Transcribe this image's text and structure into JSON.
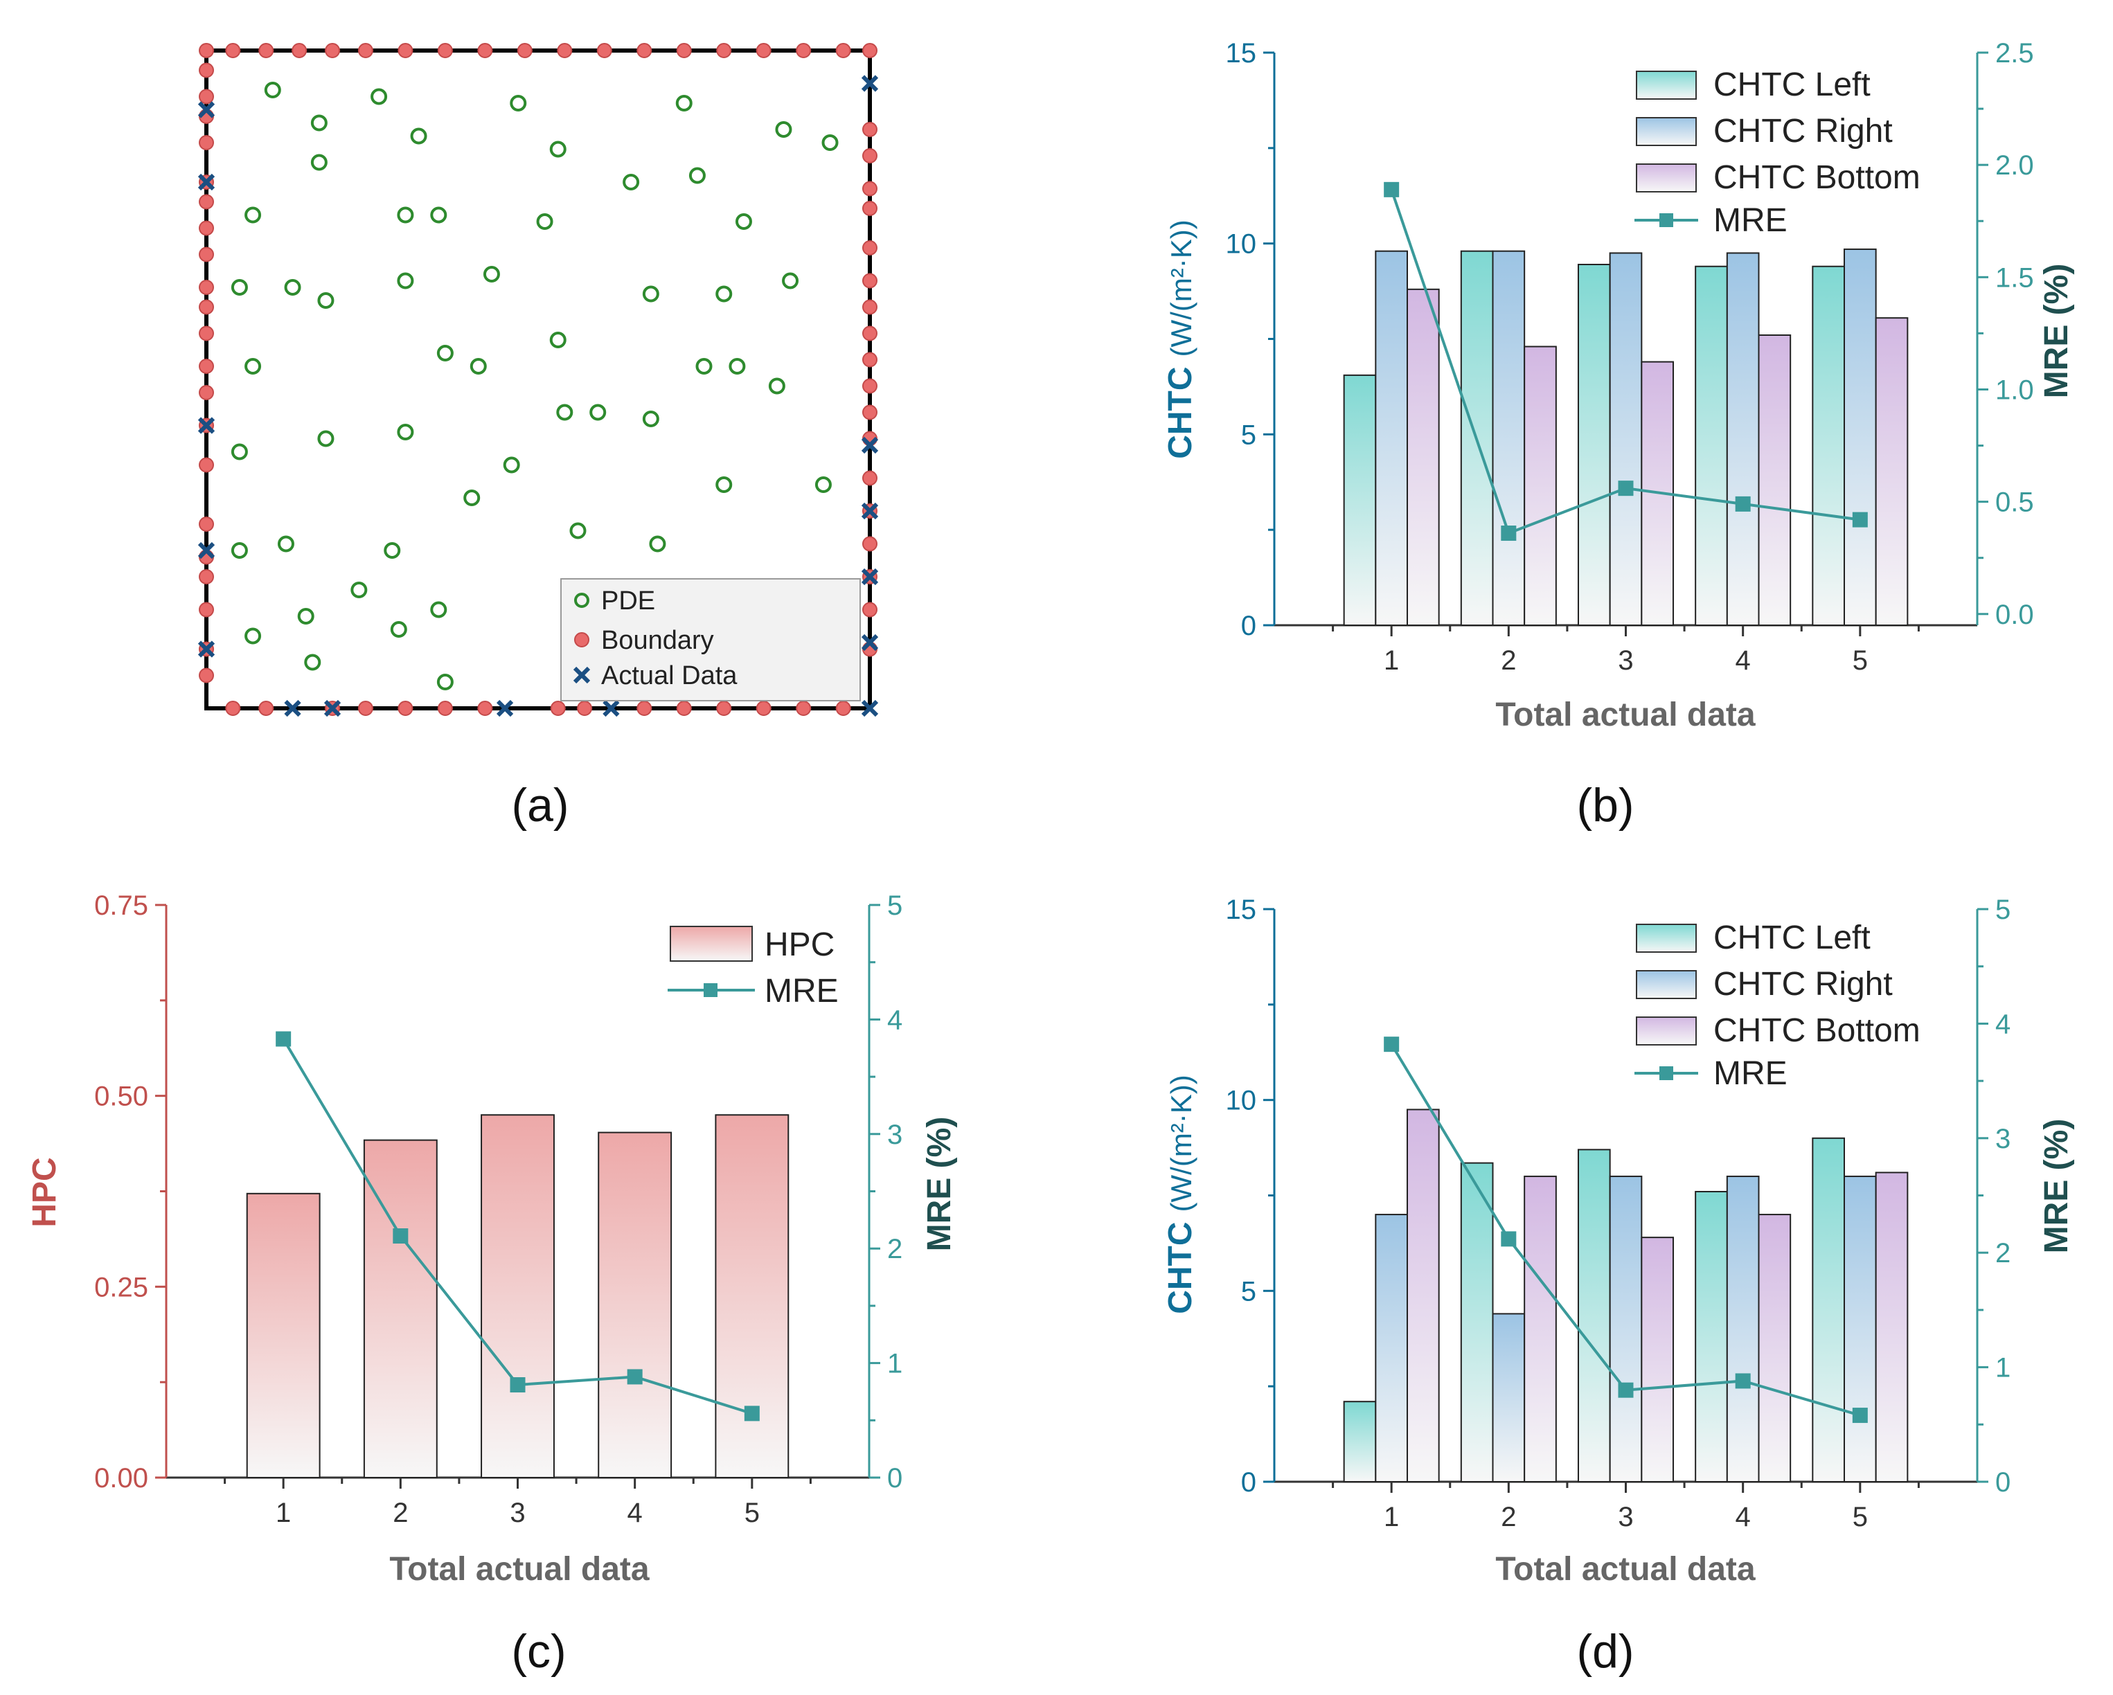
{
  "colors": {
    "teal": "#3a9a9a",
    "teal_dark": "#1f4f4f",
    "blue_axis": "#0f6f98",
    "hpc_red": "#c0504d",
    "pde_green": "#2e8b2e",
    "boundary_red": "#e86a6a",
    "actual_blue": "#1b4f82"
  },
  "labels": {
    "a": "(a)",
    "b": "(b)",
    "c": "(c)",
    "d": "(d)"
  },
  "chart_data": [
    {
      "panel": "a",
      "type": "scatter",
      "title": "",
      "xlim": [
        0,
        1
      ],
      "ylim": [
        0,
        1
      ],
      "legend_position": "bottom-right",
      "legend": [
        "PDE",
        "Boundary",
        "Actual Data"
      ],
      "series": [
        {
          "name": "PDE",
          "points": [
            [
              0.1,
              0.94
            ],
            [
              0.17,
              0.89
            ],
            [
              0.26,
              0.93
            ],
            [
              0.32,
              0.87
            ],
            [
              0.47,
              0.92
            ],
            [
              0.72,
              0.92
            ],
            [
              0.87,
              0.88
            ],
            [
              0.94,
              0.86
            ],
            [
              0.17,
              0.83
            ],
            [
              0.53,
              0.85
            ],
            [
              0.64,
              0.8
            ],
            [
              0.74,
              0.81
            ],
            [
              0.07,
              0.75
            ],
            [
              0.3,
              0.75
            ],
            [
              0.35,
              0.75
            ],
            [
              0.51,
              0.74
            ],
            [
              0.81,
              0.74
            ],
            [
              0.05,
              0.64
            ],
            [
              0.13,
              0.64
            ],
            [
              0.18,
              0.62
            ],
            [
              0.3,
              0.65
            ],
            [
              0.43,
              0.66
            ],
            [
              0.67,
              0.63
            ],
            [
              0.78,
              0.63
            ],
            [
              0.88,
              0.65
            ],
            [
              0.07,
              0.52
            ],
            [
              0.36,
              0.54
            ],
            [
              0.41,
              0.52
            ],
            [
              0.53,
              0.56
            ],
            [
              0.75,
              0.52
            ],
            [
              0.8,
              0.52
            ],
            [
              0.86,
              0.49
            ],
            [
              0.54,
              0.45
            ],
            [
              0.59,
              0.45
            ],
            [
              0.67,
              0.44
            ],
            [
              0.05,
              0.39
            ],
            [
              0.18,
              0.41
            ],
            [
              0.3,
              0.42
            ],
            [
              0.46,
              0.37
            ],
            [
              0.4,
              0.32
            ],
            [
              0.78,
              0.34
            ],
            [
              0.93,
              0.34
            ],
            [
              0.56,
              0.27
            ],
            [
              0.05,
              0.24
            ],
            [
              0.12,
              0.25
            ],
            [
              0.28,
              0.24
            ],
            [
              0.68,
              0.25
            ],
            [
              0.23,
              0.18
            ],
            [
              0.35,
              0.15
            ],
            [
              0.15,
              0.14
            ],
            [
              0.29,
              0.12
            ],
            [
              0.07,
              0.11
            ],
            [
              0.16,
              0.07
            ],
            [
              0.36,
              0.04
            ]
          ]
        },
        {
          "name": "Boundary",
          "points": [
            [
              0.0,
              0.28
            ],
            [
              0.0,
              0.23
            ],
            [
              0.0,
              0.2
            ],
            [
              0.0,
              0.15
            ],
            [
              0.0,
              0.09
            ],
            [
              0.0,
              0.05
            ],
            [
              0.0,
              0.37
            ],
            [
              0.0,
              0.43
            ],
            [
              0.0,
              0.48
            ],
            [
              0.0,
              0.52
            ],
            [
              0.0,
              0.57
            ],
            [
              0.0,
              0.61
            ],
            [
              0.0,
              0.64
            ],
            [
              0.0,
              0.69
            ],
            [
              0.0,
              0.73
            ],
            [
              0.0,
              0.77
            ],
            [
              0.0,
              0.8
            ],
            [
              0.0,
              0.86
            ],
            [
              0.0,
              0.9
            ],
            [
              0.0,
              0.93
            ],
            [
              0.0,
              0.97
            ],
            [
              0.0,
              1.0
            ],
            [
              0.04,
              1.0
            ],
            [
              0.09,
              1.0
            ],
            [
              0.14,
              1.0
            ],
            [
              0.19,
              1.0
            ],
            [
              0.24,
              1.0
            ],
            [
              0.3,
              1.0
            ],
            [
              0.36,
              1.0
            ],
            [
              0.42,
              1.0
            ],
            [
              0.48,
              1.0
            ],
            [
              0.54,
              1.0
            ],
            [
              0.6,
              1.0
            ],
            [
              0.66,
              1.0
            ],
            [
              0.72,
              1.0
            ],
            [
              0.78,
              1.0
            ],
            [
              0.84,
              1.0
            ],
            [
              0.9,
              1.0
            ],
            [
              0.96,
              1.0
            ],
            [
              1.0,
              1.0
            ],
            [
              1.0,
              0.88
            ],
            [
              1.0,
              0.84
            ],
            [
              1.0,
              0.79
            ],
            [
              1.0,
              0.76
            ],
            [
              1.0,
              0.7
            ],
            [
              1.0,
              0.65
            ],
            [
              1.0,
              0.61
            ],
            [
              1.0,
              0.57
            ],
            [
              1.0,
              0.53
            ],
            [
              1.0,
              0.49
            ],
            [
              1.0,
              0.45
            ],
            [
              1.0,
              0.41
            ],
            [
              1.0,
              0.35
            ],
            [
              1.0,
              0.3
            ],
            [
              1.0,
              0.25
            ],
            [
              1.0,
              0.2
            ],
            [
              1.0,
              0.15
            ],
            [
              1.0,
              0.09
            ],
            [
              0.04,
              0.0
            ],
            [
              0.09,
              0.0
            ],
            [
              0.19,
              0.0
            ],
            [
              0.24,
              0.0
            ],
            [
              0.3,
              0.0
            ],
            [
              0.36,
              0.0
            ],
            [
              0.42,
              0.0
            ],
            [
              0.53,
              0.0
            ],
            [
              0.57,
              0.0
            ],
            [
              0.66,
              0.0
            ],
            [
              0.72,
              0.0
            ],
            [
              0.78,
              0.0
            ],
            [
              0.84,
              0.0
            ],
            [
              0.9,
              0.0
            ],
            [
              0.96,
              0.0
            ]
          ]
        },
        {
          "name": "Actual Data",
          "points": [
            [
              0.0,
              0.91
            ],
            [
              0.0,
              0.8
            ],
            [
              0.0,
              0.43
            ],
            [
              0.0,
              0.24
            ],
            [
              0.0,
              0.09
            ],
            [
              1.0,
              0.95
            ],
            [
              1.0,
              0.4
            ],
            [
              1.0,
              0.3
            ],
            [
              1.0,
              0.2
            ],
            [
              1.0,
              0.1
            ],
            [
              1.0,
              0.0
            ],
            [
              0.13,
              0.0
            ],
            [
              0.19,
              0.0
            ],
            [
              0.45,
              0.0
            ],
            [
              0.61,
              0.0
            ]
          ]
        }
      ]
    },
    {
      "panel": "b",
      "type": "bar",
      "xlabel": "Total actual data",
      "ylabel": "CHTC",
      "ylabel_unit": "(W/(m²·K))",
      "y2label": "MRE (%)",
      "categories": [
        "1",
        "2",
        "3",
        "4",
        "5"
      ],
      "xlim": [
        0,
        6
      ],
      "ylim": [
        0,
        15
      ],
      "yticks": [
        "0",
        "5",
        "10",
        "15"
      ],
      "y2lim": [
        -0.05,
        2.5
      ],
      "y2ticks": [
        "0.0",
        "0.5",
        "1.0",
        "1.5",
        "2.0",
        "2.5"
      ],
      "legend_position": "top-right",
      "series": [
        {
          "name": "CHTC Left",
          "values": [
            6.55,
            9.8,
            9.45,
            9.4,
            9.4
          ]
        },
        {
          "name": "CHTC Right",
          "values": [
            9.8,
            9.8,
            9.75,
            9.75,
            9.85
          ]
        },
        {
          "name": "CHTC Bottom",
          "values": [
            8.8,
            7.3,
            6.9,
            7.6,
            8.05
          ]
        }
      ],
      "line": {
        "name": "MRE",
        "values": [
          1.89,
          0.36,
          0.56,
          0.49,
          0.42
        ]
      }
    },
    {
      "panel": "c",
      "type": "bar",
      "xlabel": "Total actual data",
      "ylabel": "HPC",
      "y2label": "MRE (%)",
      "categories": [
        "1",
        "2",
        "3",
        "4",
        "5"
      ],
      "xlim": [
        0,
        6
      ],
      "ylim": [
        0,
        0.75
      ],
      "yticks": [
        "0.00",
        "0.25",
        "0.50",
        "0.75"
      ],
      "y2lim": [
        0,
        5
      ],
      "y2ticks": [
        "0",
        "1",
        "2",
        "3",
        "4",
        "5"
      ],
      "legend_position": "top-right",
      "series": [
        {
          "name": "HPC",
          "values": [
            0.372,
            0.442,
            0.475,
            0.452,
            0.475
          ]
        }
      ],
      "line": {
        "name": "MRE",
        "values": [
          3.83,
          2.11,
          0.81,
          0.88,
          0.56
        ]
      }
    },
    {
      "panel": "d",
      "type": "bar",
      "xlabel": "Total actual data",
      "ylabel": "CHTC",
      "ylabel_unit": "(W/(m²·K))",
      "y2label": "MRE (%)",
      "categories": [
        "1",
        "2",
        "3",
        "4",
        "5"
      ],
      "xlim": [
        0,
        6
      ],
      "ylim": [
        0,
        15
      ],
      "yticks": [
        "0",
        "5",
        "10",
        "15"
      ],
      "y2lim": [
        0,
        5
      ],
      "y2ticks": [
        "0",
        "1",
        "2",
        "3",
        "4",
        "5"
      ],
      "legend_position": "top-right",
      "series": [
        {
          "name": "CHTC Left",
          "values": [
            2.1,
            8.35,
            8.7,
            7.6,
            9.0
          ]
        },
        {
          "name": "CHTC Right",
          "values": [
            7.0,
            4.4,
            8.0,
            8.0,
            8.0
          ]
        },
        {
          "name": "CHTC Bottom",
          "values": [
            9.75,
            8.0,
            6.4,
            7.0,
            8.1
          ]
        }
      ],
      "line": {
        "name": "MRE",
        "values": [
          3.82,
          2.12,
          0.8,
          0.88,
          0.58
        ]
      }
    }
  ]
}
